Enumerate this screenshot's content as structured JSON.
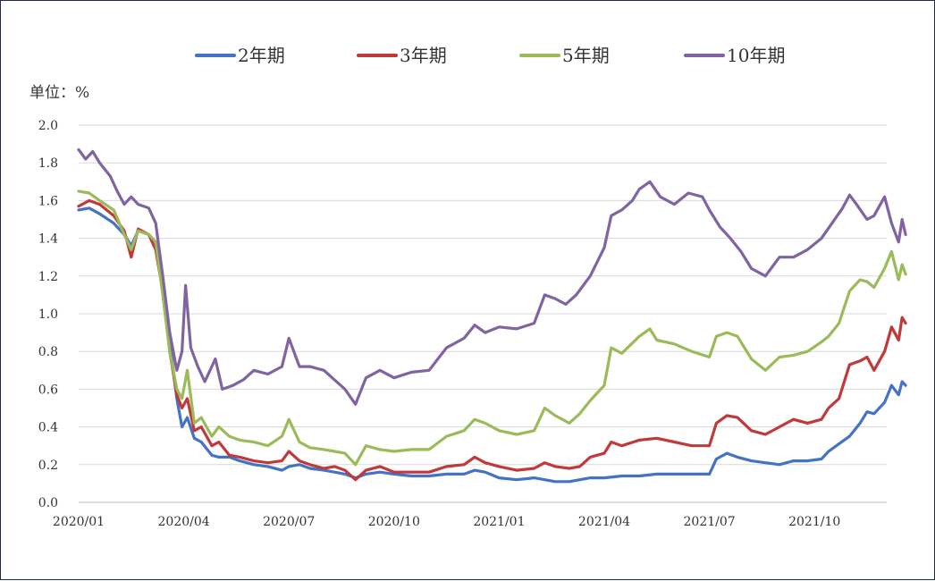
{
  "chart_data": {
    "type": "line",
    "title": "",
    "unit_label": "单位：%",
    "xlabel": "",
    "ylabel": "",
    "ylim": [
      0.0,
      2.0
    ],
    "y_ticks": [
      "0.0",
      "0.2",
      "0.4",
      "0.6",
      "0.8",
      "1.0",
      "1.2",
      "1.4",
      "1.6",
      "1.8",
      "2.0"
    ],
    "x_ticks": [
      "2020/01",
      "2020/04",
      "2020/07",
      "2020/10",
      "2021/01",
      "2021/04",
      "2021/07",
      "2021/10"
    ],
    "x_range_months": [
      0,
      23.6
    ],
    "grid": true,
    "legend_position": "top",
    "colors": {
      "s2": "#4472c4",
      "s3": "#c0393b",
      "s5": "#9bbb59",
      "s10": "#8064a2",
      "grid": "#d9d9d9",
      "axis": "#bfbfbf"
    },
    "series": [
      {
        "name": "2年期",
        "color": "#4472c4",
        "points": [
          [
            0,
            1.55
          ],
          [
            0.3,
            1.56
          ],
          [
            0.6,
            1.53
          ],
          [
            1.0,
            1.48
          ],
          [
            1.3,
            1.42
          ],
          [
            1.5,
            1.36
          ],
          [
            1.7,
            1.44
          ],
          [
            2.0,
            1.42
          ],
          [
            2.2,
            1.38
          ],
          [
            2.4,
            1.15
          ],
          [
            2.6,
            0.85
          ],
          [
            2.8,
            0.55
          ],
          [
            2.95,
            0.4
          ],
          [
            3.1,
            0.45
          ],
          [
            3.3,
            0.34
          ],
          [
            3.5,
            0.32
          ],
          [
            3.8,
            0.25
          ],
          [
            4.0,
            0.24
          ],
          [
            4.3,
            0.24
          ],
          [
            4.6,
            0.22
          ],
          [
            5.0,
            0.2
          ],
          [
            5.4,
            0.19
          ],
          [
            5.8,
            0.17
          ],
          [
            6.0,
            0.19
          ],
          [
            6.3,
            0.2
          ],
          [
            6.6,
            0.18
          ],
          [
            7.0,
            0.17
          ],
          [
            7.3,
            0.16
          ],
          [
            7.6,
            0.15
          ],
          [
            7.9,
            0.13
          ],
          [
            8.2,
            0.15
          ],
          [
            8.6,
            0.16
          ],
          [
            9.0,
            0.15
          ],
          [
            9.5,
            0.14
          ],
          [
            10.0,
            0.14
          ],
          [
            10.5,
            0.15
          ],
          [
            11.0,
            0.15
          ],
          [
            11.3,
            0.17
          ],
          [
            11.6,
            0.16
          ],
          [
            12.0,
            0.13
          ],
          [
            12.5,
            0.12
          ],
          [
            13.0,
            0.13
          ],
          [
            13.3,
            0.12
          ],
          [
            13.6,
            0.11
          ],
          [
            14.0,
            0.11
          ],
          [
            14.3,
            0.12
          ],
          [
            14.6,
            0.13
          ],
          [
            15.0,
            0.13
          ],
          [
            15.5,
            0.14
          ],
          [
            16.0,
            0.14
          ],
          [
            16.5,
            0.15
          ],
          [
            17.0,
            0.15
          ],
          [
            17.5,
            0.15
          ],
          [
            18.0,
            0.15
          ],
          [
            18.2,
            0.23
          ],
          [
            18.5,
            0.26
          ],
          [
            18.8,
            0.24
          ],
          [
            19.2,
            0.22
          ],
          [
            19.6,
            0.21
          ],
          [
            20.0,
            0.2
          ],
          [
            20.4,
            0.22
          ],
          [
            20.8,
            0.22
          ],
          [
            21.2,
            0.23
          ],
          [
            21.4,
            0.27
          ],
          [
            21.7,
            0.31
          ],
          [
            22.0,
            0.35
          ],
          [
            22.3,
            0.42
          ],
          [
            22.5,
            0.48
          ],
          [
            22.7,
            0.47
          ],
          [
            23.0,
            0.53
          ],
          [
            23.2,
            0.62
          ],
          [
            23.4,
            0.57
          ],
          [
            23.5,
            0.64
          ],
          [
            23.6,
            0.62
          ]
        ]
      },
      {
        "name": "3年期",
        "color": "#c0393b",
        "points": [
          [
            0,
            1.57
          ],
          [
            0.3,
            1.6
          ],
          [
            0.6,
            1.58
          ],
          [
            1.0,
            1.52
          ],
          [
            1.3,
            1.44
          ],
          [
            1.5,
            1.3
          ],
          [
            1.7,
            1.45
          ],
          [
            2.0,
            1.42
          ],
          [
            2.2,
            1.34
          ],
          [
            2.4,
            1.12
          ],
          [
            2.6,
            0.8
          ],
          [
            2.8,
            0.57
          ],
          [
            2.95,
            0.5
          ],
          [
            3.1,
            0.55
          ],
          [
            3.3,
            0.38
          ],
          [
            3.5,
            0.4
          ],
          [
            3.8,
            0.3
          ],
          [
            4.0,
            0.32
          ],
          [
            4.3,
            0.25
          ],
          [
            4.6,
            0.24
          ],
          [
            5.0,
            0.22
          ],
          [
            5.4,
            0.21
          ],
          [
            5.8,
            0.22
          ],
          [
            6.0,
            0.27
          ],
          [
            6.3,
            0.22
          ],
          [
            6.6,
            0.2
          ],
          [
            7.0,
            0.18
          ],
          [
            7.3,
            0.19
          ],
          [
            7.6,
            0.17
          ],
          [
            7.9,
            0.12
          ],
          [
            8.2,
            0.17
          ],
          [
            8.6,
            0.19
          ],
          [
            9.0,
            0.16
          ],
          [
            9.5,
            0.16
          ],
          [
            10.0,
            0.16
          ],
          [
            10.5,
            0.19
          ],
          [
            11.0,
            0.2
          ],
          [
            11.3,
            0.24
          ],
          [
            11.6,
            0.21
          ],
          [
            12.0,
            0.19
          ],
          [
            12.5,
            0.17
          ],
          [
            13.0,
            0.18
          ],
          [
            13.3,
            0.21
          ],
          [
            13.6,
            0.19
          ],
          [
            14.0,
            0.18
          ],
          [
            14.3,
            0.19
          ],
          [
            14.6,
            0.24
          ],
          [
            15.0,
            0.26
          ],
          [
            15.2,
            0.32
          ],
          [
            15.5,
            0.3
          ],
          [
            16.0,
            0.33
          ],
          [
            16.5,
            0.34
          ],
          [
            17.0,
            0.32
          ],
          [
            17.5,
            0.3
          ],
          [
            18.0,
            0.3
          ],
          [
            18.2,
            0.42
          ],
          [
            18.5,
            0.46
          ],
          [
            18.8,
            0.45
          ],
          [
            19.2,
            0.38
          ],
          [
            19.6,
            0.36
          ],
          [
            20.0,
            0.4
          ],
          [
            20.4,
            0.44
          ],
          [
            20.8,
            0.42
          ],
          [
            21.2,
            0.44
          ],
          [
            21.4,
            0.5
          ],
          [
            21.7,
            0.55
          ],
          [
            22.0,
            0.73
          ],
          [
            22.3,
            0.75
          ],
          [
            22.5,
            0.77
          ],
          [
            22.7,
            0.7
          ],
          [
            23.0,
            0.8
          ],
          [
            23.2,
            0.93
          ],
          [
            23.4,
            0.86
          ],
          [
            23.5,
            0.98
          ],
          [
            23.6,
            0.95
          ]
        ]
      },
      {
        "name": "5年期",
        "color": "#9bbb59",
        "points": [
          [
            0,
            1.65
          ],
          [
            0.3,
            1.64
          ],
          [
            0.6,
            1.6
          ],
          [
            1.0,
            1.55
          ],
          [
            1.3,
            1.42
          ],
          [
            1.5,
            1.34
          ],
          [
            1.7,
            1.44
          ],
          [
            2.0,
            1.42
          ],
          [
            2.2,
            1.38
          ],
          [
            2.4,
            1.1
          ],
          [
            2.6,
            0.8
          ],
          [
            2.8,
            0.6
          ],
          [
            2.95,
            0.55
          ],
          [
            3.1,
            0.7
          ],
          [
            3.3,
            0.42
          ],
          [
            3.5,
            0.45
          ],
          [
            3.8,
            0.35
          ],
          [
            4.0,
            0.4
          ],
          [
            4.3,
            0.35
          ],
          [
            4.6,
            0.33
          ],
          [
            5.0,
            0.32
          ],
          [
            5.4,
            0.3
          ],
          [
            5.8,
            0.35
          ],
          [
            6.0,
            0.44
          ],
          [
            6.3,
            0.32
          ],
          [
            6.6,
            0.29
          ],
          [
            7.0,
            0.28
          ],
          [
            7.3,
            0.27
          ],
          [
            7.6,
            0.26
          ],
          [
            7.9,
            0.2
          ],
          [
            8.2,
            0.3
          ],
          [
            8.6,
            0.28
          ],
          [
            9.0,
            0.27
          ],
          [
            9.5,
            0.28
          ],
          [
            10.0,
            0.28
          ],
          [
            10.5,
            0.35
          ],
          [
            11.0,
            0.38
          ],
          [
            11.3,
            0.44
          ],
          [
            11.6,
            0.42
          ],
          [
            12.0,
            0.38
          ],
          [
            12.5,
            0.36
          ],
          [
            13.0,
            0.38
          ],
          [
            13.3,
            0.5
          ],
          [
            13.6,
            0.46
          ],
          [
            14.0,
            0.42
          ],
          [
            14.3,
            0.47
          ],
          [
            14.6,
            0.54
          ],
          [
            15.0,
            0.62
          ],
          [
            15.2,
            0.82
          ],
          [
            15.5,
            0.79
          ],
          [
            16.0,
            0.88
          ],
          [
            16.3,
            0.92
          ],
          [
            16.5,
            0.86
          ],
          [
            17.0,
            0.84
          ],
          [
            17.5,
            0.8
          ],
          [
            18.0,
            0.77
          ],
          [
            18.2,
            0.88
          ],
          [
            18.5,
            0.9
          ],
          [
            18.8,
            0.88
          ],
          [
            19.2,
            0.76
          ],
          [
            19.6,
            0.7
          ],
          [
            20.0,
            0.77
          ],
          [
            20.4,
            0.78
          ],
          [
            20.8,
            0.8
          ],
          [
            21.2,
            0.85
          ],
          [
            21.4,
            0.88
          ],
          [
            21.7,
            0.95
          ],
          [
            22.0,
            1.12
          ],
          [
            22.3,
            1.18
          ],
          [
            22.5,
            1.17
          ],
          [
            22.7,
            1.14
          ],
          [
            23.0,
            1.24
          ],
          [
            23.2,
            1.33
          ],
          [
            23.4,
            1.18
          ],
          [
            23.5,
            1.26
          ],
          [
            23.6,
            1.21
          ]
        ]
      },
      {
        "name": "10年期",
        "color": "#8064a2",
        "points": [
          [
            0,
            1.87
          ],
          [
            0.2,
            1.82
          ],
          [
            0.4,
            1.86
          ],
          [
            0.6,
            1.8
          ],
          [
            0.9,
            1.73
          ],
          [
            1.1,
            1.65
          ],
          [
            1.3,
            1.58
          ],
          [
            1.5,
            1.62
          ],
          [
            1.7,
            1.58
          ],
          [
            2.0,
            1.56
          ],
          [
            2.2,
            1.48
          ],
          [
            2.4,
            1.2
          ],
          [
            2.6,
            0.9
          ],
          [
            2.8,
            0.7
          ],
          [
            2.95,
            0.8
          ],
          [
            3.05,
            1.15
          ],
          [
            3.2,
            0.82
          ],
          [
            3.4,
            0.72
          ],
          [
            3.6,
            0.64
          ],
          [
            3.9,
            0.76
          ],
          [
            4.1,
            0.6
          ],
          [
            4.4,
            0.62
          ],
          [
            4.7,
            0.65
          ],
          [
            5.0,
            0.7
          ],
          [
            5.4,
            0.68
          ],
          [
            5.8,
            0.72
          ],
          [
            6.0,
            0.87
          ],
          [
            6.3,
            0.72
          ],
          [
            6.6,
            0.72
          ],
          [
            7.0,
            0.7
          ],
          [
            7.3,
            0.65
          ],
          [
            7.6,
            0.6
          ],
          [
            7.9,
            0.52
          ],
          [
            8.2,
            0.66
          ],
          [
            8.6,
            0.7
          ],
          [
            9.0,
            0.66
          ],
          [
            9.5,
            0.69
          ],
          [
            10.0,
            0.7
          ],
          [
            10.5,
            0.82
          ],
          [
            11.0,
            0.87
          ],
          [
            11.3,
            0.94
          ],
          [
            11.6,
            0.9
          ],
          [
            12.0,
            0.93
          ],
          [
            12.5,
            0.92
          ],
          [
            13.0,
            0.95
          ],
          [
            13.3,
            1.1
          ],
          [
            13.6,
            1.08
          ],
          [
            13.9,
            1.05
          ],
          [
            14.2,
            1.1
          ],
          [
            14.6,
            1.2
          ],
          [
            15.0,
            1.35
          ],
          [
            15.2,
            1.52
          ],
          [
            15.5,
            1.55
          ],
          [
            15.8,
            1.6
          ],
          [
            16.0,
            1.66
          ],
          [
            16.3,
            1.7
          ],
          [
            16.6,
            1.62
          ],
          [
            17.0,
            1.58
          ],
          [
            17.4,
            1.64
          ],
          [
            17.8,
            1.62
          ],
          [
            18.0,
            1.55
          ],
          [
            18.3,
            1.46
          ],
          [
            18.6,
            1.4
          ],
          [
            18.9,
            1.33
          ],
          [
            19.2,
            1.24
          ],
          [
            19.6,
            1.2
          ],
          [
            20.0,
            1.3
          ],
          [
            20.4,
            1.3
          ],
          [
            20.8,
            1.34
          ],
          [
            21.2,
            1.4
          ],
          [
            21.5,
            1.48
          ],
          [
            21.8,
            1.56
          ],
          [
            22.0,
            1.63
          ],
          [
            22.2,
            1.58
          ],
          [
            22.5,
            1.5
          ],
          [
            22.7,
            1.52
          ],
          [
            23.0,
            1.62
          ],
          [
            23.2,
            1.48
          ],
          [
            23.4,
            1.38
          ],
          [
            23.5,
            1.5
          ],
          [
            23.6,
            1.42
          ]
        ]
      }
    ]
  }
}
